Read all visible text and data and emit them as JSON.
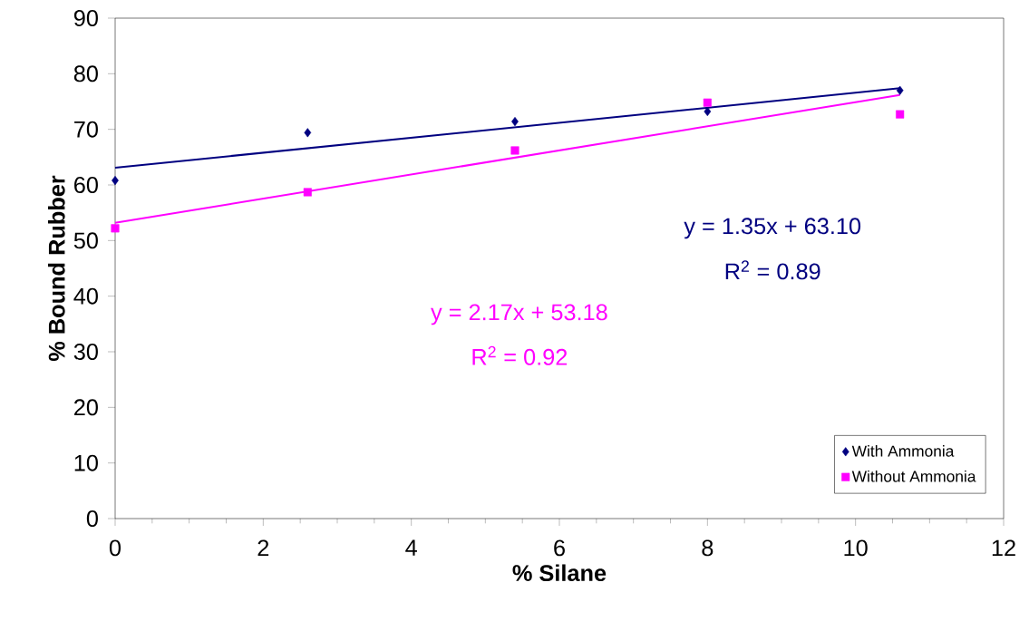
{
  "chart_data": {
    "type": "scatter",
    "xlabel": "% Silane",
    "ylabel": "% Bound Rubber",
    "xlim": [
      0,
      12
    ],
    "xticks": [
      0,
      2,
      4,
      6,
      8,
      10,
      12
    ],
    "ylim": [
      0,
      90
    ],
    "yticks": [
      0,
      10,
      20,
      30,
      40,
      50,
      60,
      70,
      80,
      90
    ],
    "grid": false,
    "legend": "bottom right",
    "series": [
      {
        "name": "With Ammonia",
        "color": "#000080",
        "marker": "diamond",
        "x": [
          0,
          2.6,
          5.4,
          8.0,
          10.6
        ],
        "values": [
          60.8,
          69.4,
          71.4,
          73.2,
          77.0
        ]
      },
      {
        "name": "Without Ammonia",
        "color": "#ff00ff",
        "marker": "square",
        "x": [
          0,
          2.6,
          5.4,
          8.0,
          10.6
        ],
        "values": [
          52.2,
          58.7,
          66.2,
          74.8,
          72.7
        ]
      },
      {
        "type": "line",
        "color": "#000080",
        "x": [
          0,
          10.6
        ],
        "values": [
          63.1,
          77.4
        ]
      },
      {
        "type": "line",
        "color": "#ff00ff",
        "x": [
          0,
          10.6
        ],
        "values": [
          53.2,
          76.2
        ]
      }
    ],
    "annotations": [
      "y = 1.35x + 63.10",
      "R$^{2}$ = 0.89",
      "y = 2.17x + 53.18",
      "R$^{2}$ = 0.92"
    ]
  }
}
